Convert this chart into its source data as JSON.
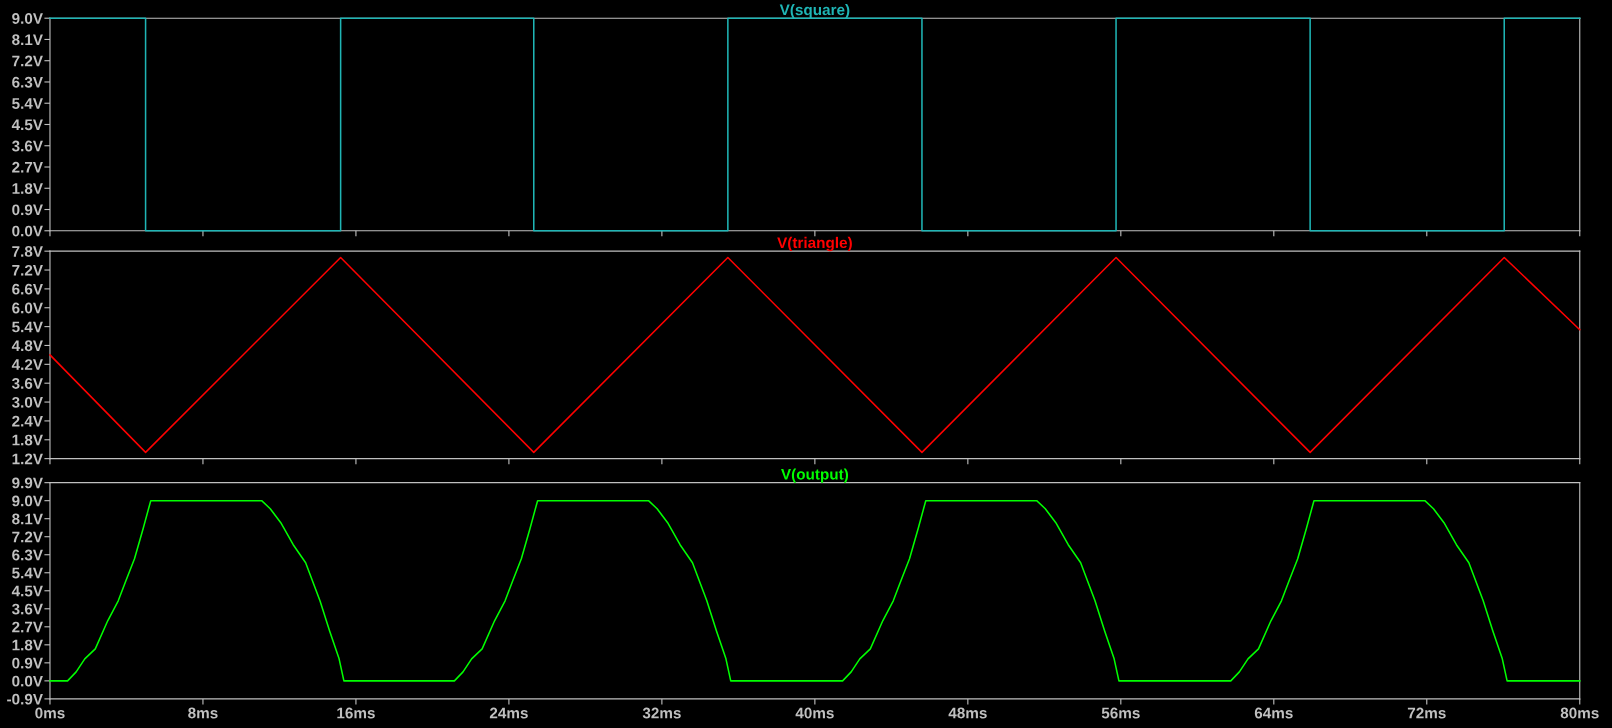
{
  "chart_data": [
    {
      "type": "line",
      "title": "V(square)",
      "xlim": [
        0,
        80
      ],
      "xticks": [
        {
          "value": 0,
          "label": null
        },
        {
          "value": 8,
          "label": null
        },
        {
          "value": 16,
          "label": null
        },
        {
          "value": 24,
          "label": null
        },
        {
          "value": 32,
          "label": null
        },
        {
          "value": 40,
          "label": null
        },
        {
          "value": 48,
          "label": null
        },
        {
          "value": 56,
          "label": null
        },
        {
          "value": 64,
          "label": null
        },
        {
          "value": 72,
          "label": null
        },
        {
          "value": 80,
          "label": null
        }
      ],
      "ylim": [
        0,
        9
      ],
      "yticks": [
        {
          "value": 0,
          "label": "0.0V"
        },
        {
          "value": 0.9,
          "label": "0.9V"
        },
        {
          "value": 1.8,
          "label": "1.8V"
        },
        {
          "value": 2.7,
          "label": "2.7V"
        },
        {
          "value": 3.6,
          "label": "3.6V"
        },
        {
          "value": 4.5,
          "label": "4.5V"
        },
        {
          "value": 5.4,
          "label": "5.4V"
        },
        {
          "value": 6.3,
          "label": "6.3V"
        },
        {
          "value": 7.2,
          "label": "7.2V"
        },
        {
          "value": 8.1,
          "label": "8.1V"
        },
        {
          "value": 9,
          "label": "9.0V"
        }
      ],
      "tick_labels": "y",
      "series": [
        {
          "color": "#1fb5b5",
          "x": [
            0,
            5.0,
            5.0,
            15.2,
            15.2,
            25.3,
            25.3,
            35.45,
            35.45,
            45.6,
            45.6,
            55.75,
            55.75,
            65.9,
            65.9,
            76.05,
            76.05,
            80
          ],
          "values": [
            9,
            9,
            0,
            0,
            9,
            9,
            0,
            0,
            9,
            9,
            0,
            0,
            9,
            9,
            0,
            0,
            9,
            9
          ]
        }
      ]
    },
    {
      "type": "line",
      "title": "V(triangle)",
      "xlim": [
        0,
        80
      ],
      "xticks": [
        {
          "value": 0,
          "label": null
        },
        {
          "value": 8,
          "label": null
        },
        {
          "value": 16,
          "label": null
        },
        {
          "value": 24,
          "label": null
        },
        {
          "value": 32,
          "label": null
        },
        {
          "value": 40,
          "label": null
        },
        {
          "value": 48,
          "label": null
        },
        {
          "value": 56,
          "label": null
        },
        {
          "value": 64,
          "label": null
        },
        {
          "value": 72,
          "label": null
        },
        {
          "value": 80,
          "label": null
        }
      ],
      "ylim": [
        1.2,
        7.8
      ],
      "yticks": [
        {
          "value": 1.2,
          "label": "1.2V"
        },
        {
          "value": 1.8,
          "label": "1.8V"
        },
        {
          "value": 2.4,
          "label": "2.4V"
        },
        {
          "value": 3.0,
          "label": "3.0V"
        },
        {
          "value": 3.6,
          "label": "3.6V"
        },
        {
          "value": 4.2,
          "label": "4.2V"
        },
        {
          "value": 4.8,
          "label": "4.8V"
        },
        {
          "value": 5.4,
          "label": "5.4V"
        },
        {
          "value": 6.0,
          "label": "6.0V"
        },
        {
          "value": 6.6,
          "label": "6.6V"
        },
        {
          "value": 7.2,
          "label": "7.2V"
        },
        {
          "value": 7.8,
          "label": "7.8V"
        }
      ],
      "tick_labels": "y",
      "series": [
        {
          "color": "#ff0000",
          "x": [
            0,
            5.0,
            15.2,
            25.3,
            35.45,
            45.6,
            55.75,
            65.9,
            76.05,
            80
          ],
          "values": [
            4.5,
            1.4,
            7.6,
            1.4,
            7.6,
            1.4,
            7.6,
            1.4,
            7.6,
            5.3
          ]
        }
      ]
    },
    {
      "type": "line",
      "title": "V(output)",
      "xlim": [
        0,
        80
      ],
      "xticks": [
        {
          "value": 0,
          "label": "0ms"
        },
        {
          "value": 8,
          "label": "8ms"
        },
        {
          "value": 16,
          "label": "16ms"
        },
        {
          "value": 24,
          "label": "24ms"
        },
        {
          "value": 32,
          "label": "32ms"
        },
        {
          "value": 40,
          "label": "40ms"
        },
        {
          "value": 48,
          "label": "48ms"
        },
        {
          "value": 56,
          "label": "56ms"
        },
        {
          "value": 64,
          "label": "64ms"
        },
        {
          "value": 72,
          "label": "72ms"
        },
        {
          "value": 80,
          "label": "80ms"
        }
      ],
      "ylim": [
        -0.9,
        9.9
      ],
      "yticks": [
        {
          "value": -0.9,
          "label": "-0.9V"
        },
        {
          "value": 0,
          "label": "0.0V"
        },
        {
          "value": 0.9,
          "label": "0.9V"
        },
        {
          "value": 1.8,
          "label": "1.8V"
        },
        {
          "value": 2.7,
          "label": "2.7V"
        },
        {
          "value": 3.6,
          "label": "3.6V"
        },
        {
          "value": 4.5,
          "label": "4.5V"
        },
        {
          "value": 5.4,
          "label": "5.4V"
        },
        {
          "value": 6.3,
          "label": "6.3V"
        },
        {
          "value": 7.2,
          "label": "7.2V"
        },
        {
          "value": 8.1,
          "label": "8.1V"
        },
        {
          "value": 9,
          "label": "9.0V"
        },
        {
          "value": 9.9,
          "label": "9.9V"
        }
      ],
      "series": [
        {
          "color": "#00ff00",
          "x": [
            0,
            0.92,
            1.37,
            1.82,
            2.37,
            3.02,
            3.57,
            3.97,
            4.42,
            4.87,
            5.27,
            11.07,
            11.52,
            12.07,
            12.72,
            13.37,
            14.12,
            14.62,
            15.12,
            15.37,
            21.15,
            21.6,
            22.05,
            22.6,
            23.25,
            23.8,
            24.2,
            24.65,
            25.1,
            25.5,
            31.3,
            31.75,
            32.3,
            32.95,
            33.6,
            34.35,
            34.85,
            35.35,
            35.6,
            41.45,
            41.9,
            42.35,
            42.9,
            43.55,
            44.1,
            44.5,
            44.95,
            45.4,
            45.8,
            51.6,
            52.05,
            52.6,
            53.25,
            53.9,
            54.65,
            55.15,
            55.65,
            55.9,
            61.75,
            62.2,
            62.65,
            63.2,
            63.85,
            64.4,
            64.8,
            65.25,
            65.7,
            66.1,
            71.9,
            72.35,
            72.9,
            73.55,
            74.2,
            74.95,
            75.45,
            75.95,
            76.2,
            80
          ],
          "values": [
            0,
            0,
            0.45,
            1.1,
            1.6,
            3.0,
            4.0,
            5.0,
            6.1,
            7.6,
            9.0,
            9.0,
            8.6,
            7.9,
            6.8,
            5.9,
            4.0,
            2.5,
            1.1,
            0,
            0,
            0.45,
            1.1,
            1.6,
            3.0,
            4.0,
            5.0,
            6.1,
            7.6,
            9.0,
            9.0,
            8.6,
            7.9,
            6.8,
            5.9,
            4.0,
            2.5,
            1.1,
            0,
            0,
            0.45,
            1.1,
            1.6,
            3.0,
            4.0,
            5.0,
            6.1,
            7.6,
            9.0,
            9.0,
            8.6,
            7.9,
            6.8,
            5.9,
            4.0,
            2.5,
            1.1,
            0,
            0,
            0.45,
            1.1,
            1.6,
            3.0,
            4.0,
            5.0,
            6.1,
            7.6,
            9.0,
            9.0,
            8.6,
            7.9,
            6.8,
            5.9,
            4.0,
            2.5,
            1.1,
            0,
            0
          ]
        }
      ]
    }
  ]
}
